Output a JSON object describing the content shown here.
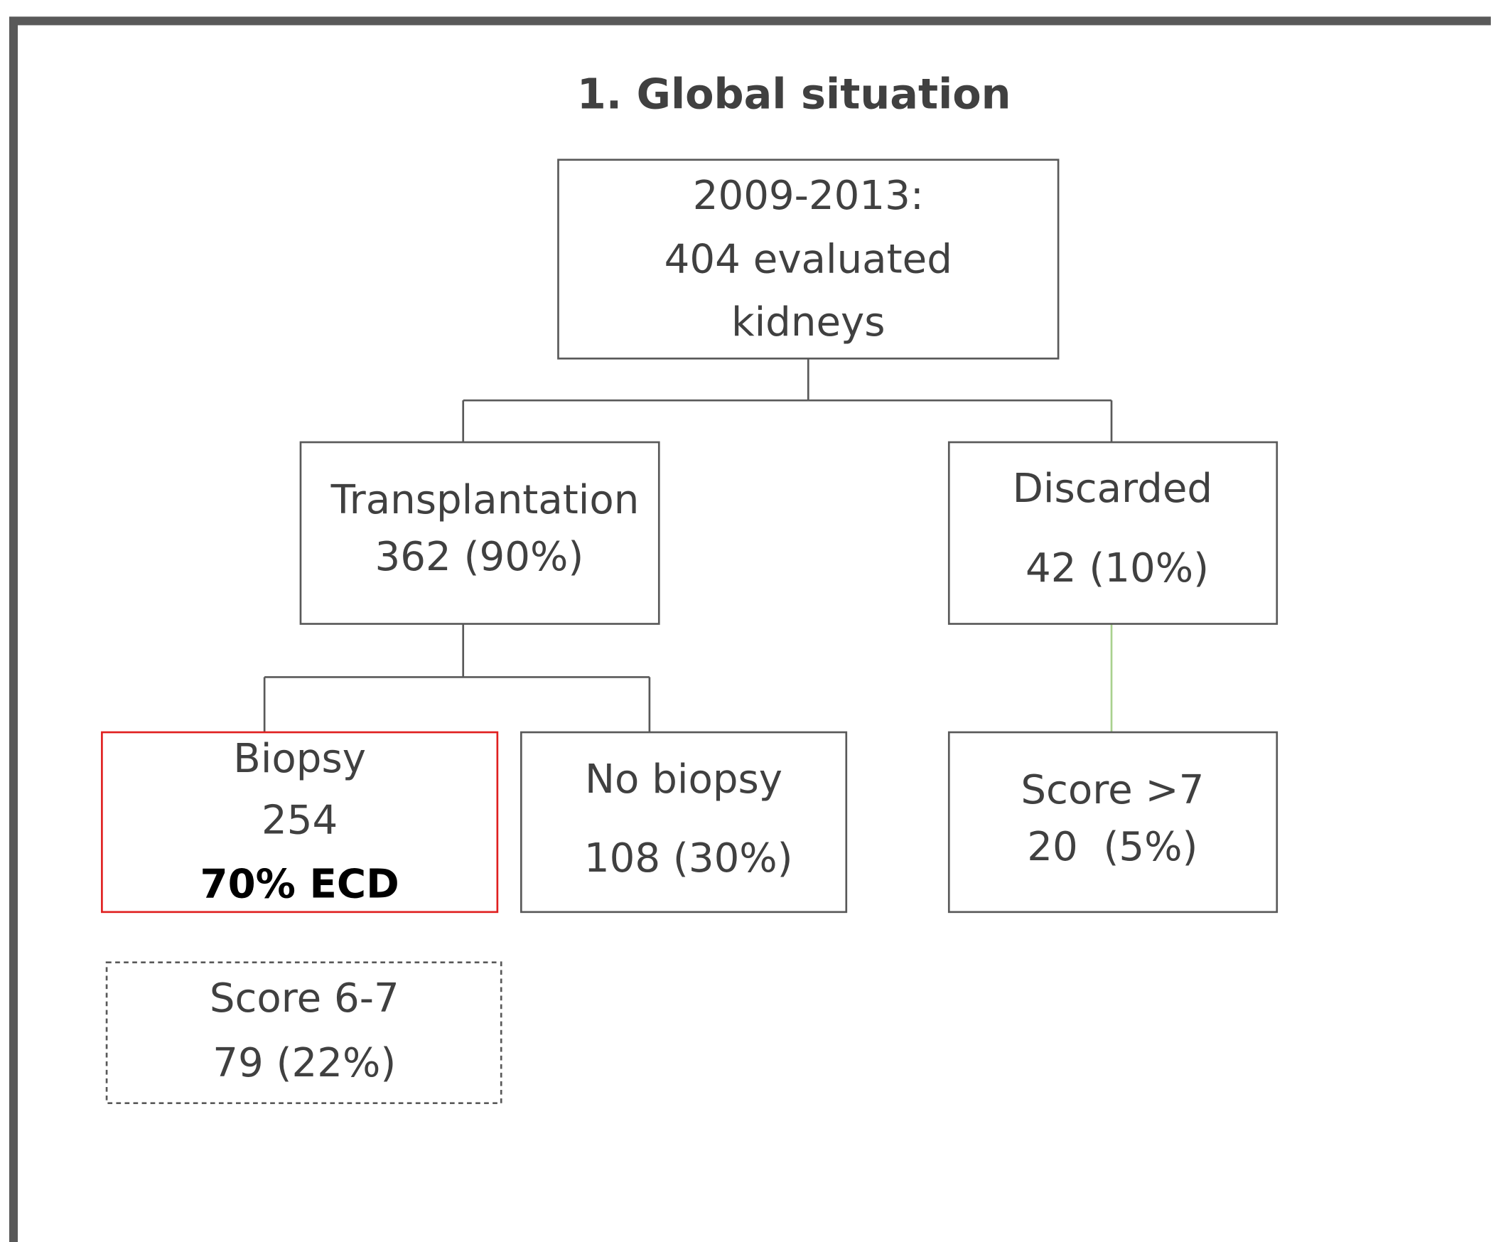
{
  "title": "1. Global situation",
  "nodes": [
    {
      "lines": [
        "2009-2013:",
        "404 evaluated",
        "kidneys"
      ]
    },
    {
      "lines": [
        "Transplantation",
        "362 (90%)"
      ]
    },
    {
      "lines": [
        "Discarded",
        "42 (10%)"
      ]
    },
    {
      "lines": [
        "Biopsy",
        "254",
        "70% ECD"
      ]
    },
    {
      "lines": [
        "No biopsy",
        "108 (30%)"
      ]
    },
    {
      "lines": [
        "Score >7",
        "20  (5%)"
      ]
    },
    {
      "lines": [
        "Score 6-7",
        "79 (22%)"
      ]
    }
  ]
}
